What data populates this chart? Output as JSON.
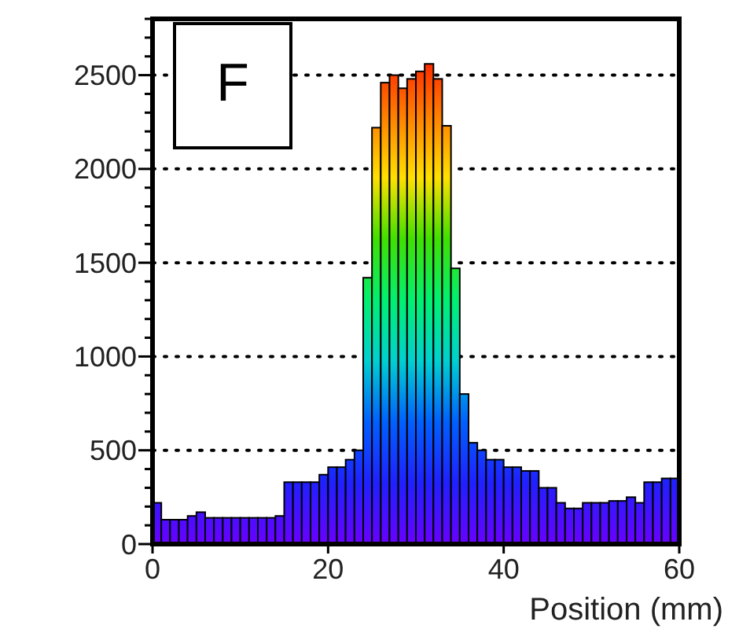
{
  "chart_data": {
    "type": "histogram",
    "xlabel": "Position (mm)",
    "annotations": [
      "F"
    ],
    "bins": [
      0,
      1,
      2,
      3,
      4,
      5,
      6,
      7,
      8,
      9,
      10,
      11,
      12,
      13,
      14,
      15,
      16,
      17,
      18,
      19,
      20,
      21,
      22,
      23,
      24,
      25,
      26,
      27,
      28,
      29,
      30,
      31,
      32,
      33,
      34,
      35,
      36,
      37,
      38,
      39,
      40,
      41,
      42,
      43,
      44,
      45,
      46,
      47,
      48,
      49,
      50,
      51,
      52,
      53,
      54,
      55,
      56,
      57,
      58,
      59,
      60
    ],
    "values": [
      220,
      130,
      130,
      130,
      150,
      170,
      140,
      140,
      140,
      140,
      140,
      140,
      140,
      140,
      150,
      330,
      330,
      330,
      330,
      370,
      410,
      410,
      450,
      500,
      1420,
      2220,
      2460,
      2500,
      2430,
      2480,
      2520,
      2560,
      2480,
      2230,
      1470,
      800,
      540,
      500,
      450,
      450,
      410,
      410,
      390,
      390,
      300,
      300,
      220,
      190,
      190,
      220,
      220,
      220,
      230,
      230,
      250,
      220,
      330,
      330,
      350,
      350
    ],
    "xlim": [
      0,
      60
    ],
    "xticks": [
      0,
      20,
      40,
      60
    ],
    "ylim": [
      0,
      2800
    ],
    "yticks": [
      0,
      500,
      1000,
      1500,
      2000,
      2500
    ],
    "grid": "y"
  }
}
